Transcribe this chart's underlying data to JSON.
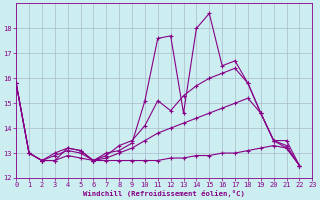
{
  "xlabel": "Windchill (Refroidissement éolien,°C)",
  "background_color": "#cceef0",
  "grid_color": "#aabbcc",
  "line_color": "#880088",
  "xlim": [
    0,
    23
  ],
  "ylim": [
    12,
    19
  ],
  "yticks": [
    12,
    13,
    14,
    15,
    16,
    17,
    18
  ],
  "xticks": [
    0,
    1,
    2,
    3,
    4,
    5,
    6,
    7,
    8,
    9,
    10,
    11,
    12,
    13,
    14,
    15,
    16,
    17,
    18,
    19,
    20,
    21,
    22,
    23
  ],
  "series": [
    [
      15.8,
      13.0,
      12.7,
      12.7,
      13.2,
      13.1,
      12.7,
      13.0,
      13.1,
      13.4,
      15.1,
      17.6,
      17.7,
      14.6,
      18.0,
      18.6,
      16.5,
      16.7,
      15.8,
      14.6,
      13.5,
      13.5,
      12.5
    ],
    [
      15.8,
      13.0,
      12.7,
      13.0,
      13.2,
      13.1,
      12.7,
      12.9,
      13.3,
      13.5,
      14.1,
      15.1,
      14.7,
      15.3,
      15.7,
      16.0,
      16.2,
      16.4,
      15.8,
      14.6,
      13.5,
      13.3,
      12.5
    ],
    [
      15.8,
      13.0,
      12.7,
      12.9,
      13.1,
      13.0,
      12.7,
      12.8,
      13.0,
      13.2,
      13.5,
      13.8,
      14.0,
      14.2,
      14.4,
      14.6,
      14.8,
      15.0,
      15.2,
      14.6,
      13.5,
      13.2,
      12.5
    ],
    [
      15.8,
      13.0,
      12.7,
      12.7,
      12.9,
      12.8,
      12.7,
      12.7,
      12.7,
      12.7,
      12.7,
      12.7,
      12.8,
      12.8,
      12.9,
      12.9,
      13.0,
      13.0,
      13.1,
      13.2,
      13.3,
      13.2,
      12.5
    ]
  ]
}
